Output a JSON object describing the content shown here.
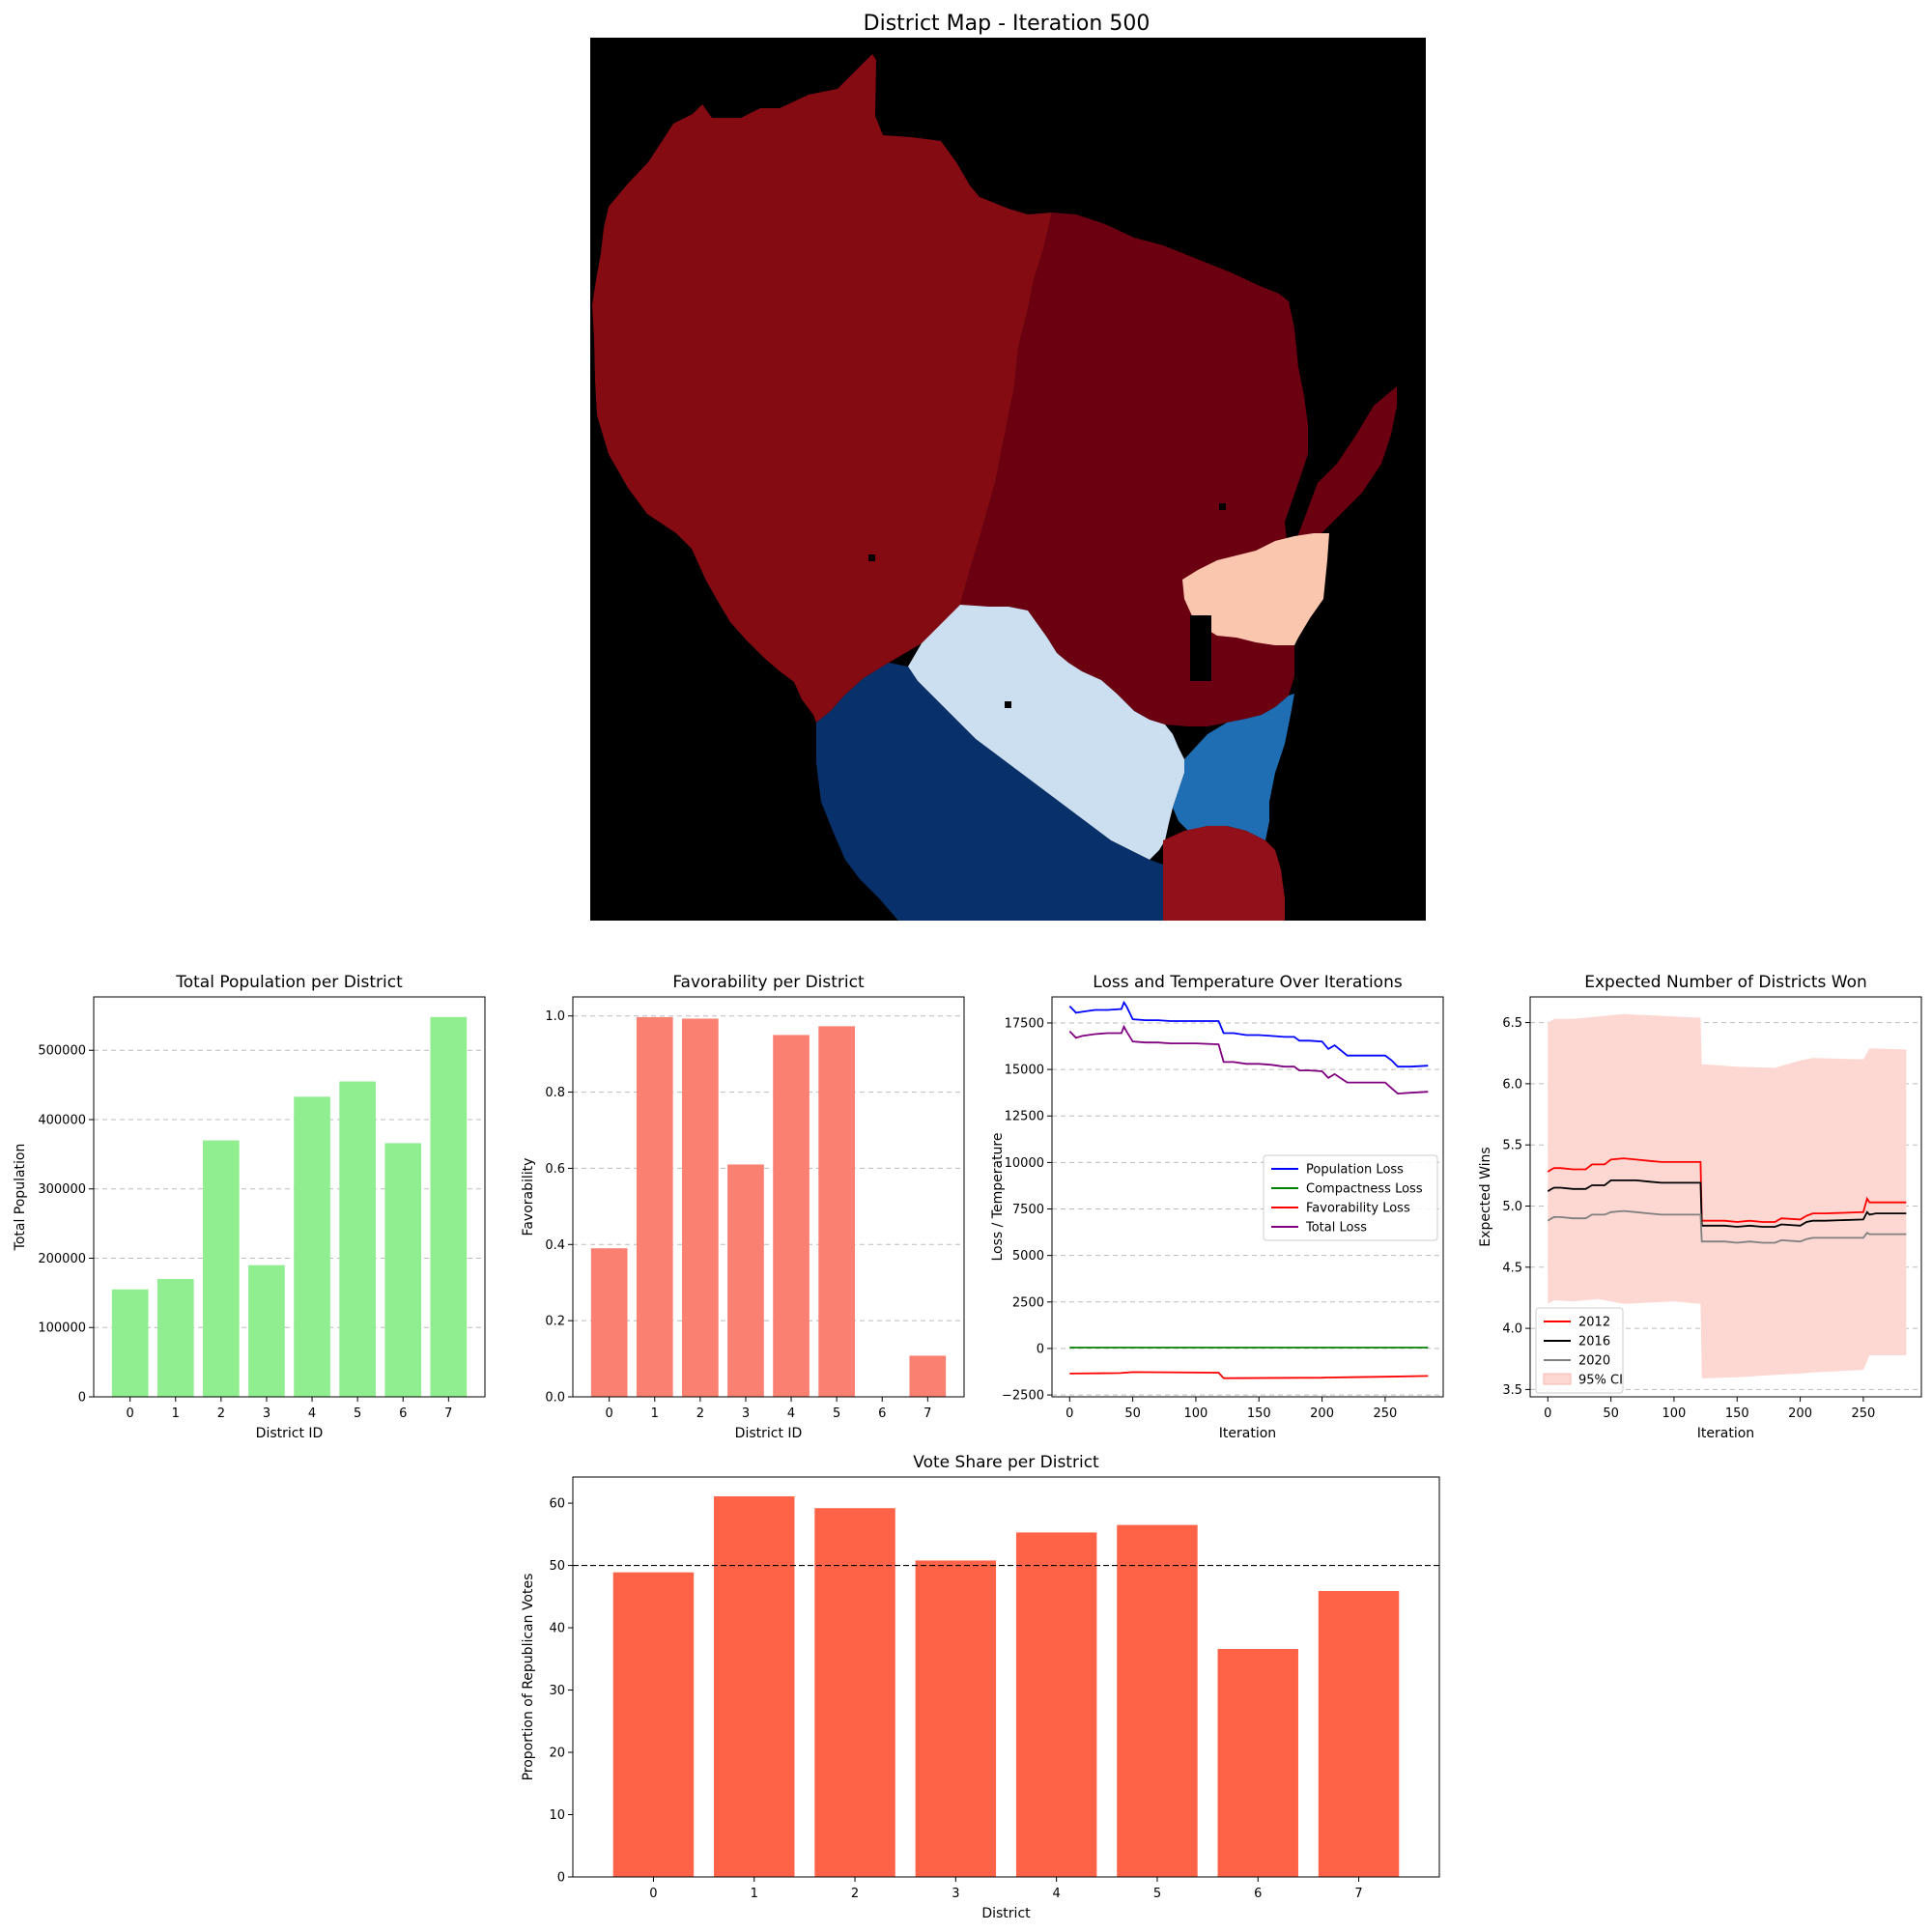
{
  "map": {
    "title": "District Map - Iteration 500",
    "colors": {
      "background": "#000000",
      "dark_red": "#840B12",
      "darker_red": "#6B0011",
      "red_se": "#91101A",
      "peach": "#FAC6AE",
      "light_blue": "#CCDFF1",
      "navy": "#08306B",
      "mid_blue": "#1F6EB3"
    }
  },
  "chart_data": [
    {
      "id": "population",
      "type": "bar",
      "title": "Total Population per District",
      "xlabel": "District ID",
      "ylabel": "Total Population",
      "categories": [
        "0",
        "1",
        "2",
        "3",
        "4",
        "5",
        "6",
        "7"
      ],
      "values": [
        155000,
        170000,
        370000,
        190000,
        433000,
        455000,
        366000,
        548000
      ],
      "ylim": [
        0,
        577000
      ],
      "yticks": [
        "0",
        "100000",
        "200000",
        "300000",
        "400000",
        "500000"
      ],
      "color": "#90EE90",
      "grid": "y"
    },
    {
      "id": "favorability",
      "type": "bar",
      "title": "Favorability per District",
      "xlabel": "District ID",
      "ylabel": "Favorability",
      "categories": [
        "0",
        "1",
        "2",
        "3",
        "4",
        "5",
        "6",
        "7"
      ],
      "values": [
        0.39,
        0.997,
        0.993,
        0.61,
        0.95,
        0.973,
        0.0,
        0.108
      ],
      "ylim": [
        0,
        1.05
      ],
      "yticks": [
        "0.0",
        "0.2",
        "0.4",
        "0.6",
        "0.8",
        "1.0"
      ],
      "color": "#FA8072",
      "grid": "y"
    },
    {
      "id": "loss",
      "type": "line",
      "title": "Loss and Temperature Over Iterations",
      "xlabel": "Iteration",
      "ylabel": "Loss / Temperature",
      "xlim": [
        -14,
        296
      ],
      "ylim": [
        -2600,
        18900
      ],
      "xticks": [
        "0",
        "50",
        "100",
        "150",
        "200",
        "250"
      ],
      "yticks": [
        "−2500",
        "0",
        "2500",
        "5000",
        "7500",
        "10000",
        "12500",
        "15000",
        "17500"
      ],
      "legend": "center-right",
      "grid": "y",
      "series": [
        {
          "name": "Population Loss",
          "color": "#0000FF",
          "x": [
            0,
            3,
            5,
            10,
            20,
            30,
            41,
            43,
            45,
            50,
            60,
            70,
            80,
            90,
            100,
            118,
            122,
            130,
            140,
            150,
            160,
            170,
            178,
            182,
            190,
            200,
            205,
            210,
            220,
            240,
            250,
            255,
            260,
            270,
            284
          ],
          "y": [
            18400,
            18200,
            18050,
            18100,
            18200,
            18200,
            18250,
            18600,
            18400,
            17700,
            17650,
            17650,
            17600,
            17600,
            17600,
            17600,
            16950,
            16950,
            16850,
            16850,
            16800,
            16750,
            16750,
            16550,
            16550,
            16500,
            16100,
            16300,
            15750,
            15750,
            15750,
            15500,
            15150,
            15150,
            15200
          ]
        },
        {
          "name": "Compactness Loss",
          "color": "#008000",
          "x": [
            0,
            284
          ],
          "y": [
            50,
            50
          ]
        },
        {
          "name": "Favorability Loss",
          "color": "#FF0000",
          "x": [
            0,
            40,
            50,
            118,
            122,
            200,
            205,
            250,
            284
          ],
          "y": [
            -1350,
            -1320,
            -1270,
            -1300,
            -1600,
            -1570,
            -1560,
            -1520,
            -1480
          ]
        },
        {
          "name": "Total Loss",
          "color": "#800080",
          "x": [
            0,
            3,
            5,
            10,
            20,
            30,
            41,
            43,
            45,
            50,
            60,
            70,
            80,
            90,
            100,
            118,
            122,
            130,
            140,
            150,
            160,
            170,
            178,
            182,
            190,
            200,
            205,
            210,
            220,
            240,
            250,
            255,
            260,
            270,
            284
          ],
          "y": [
            17050,
            16850,
            16700,
            16800,
            16900,
            16950,
            16950,
            17300,
            17050,
            16500,
            16450,
            16450,
            16400,
            16400,
            16400,
            16350,
            15400,
            15400,
            15300,
            15300,
            15250,
            15150,
            15150,
            14950,
            14950,
            14900,
            14550,
            14750,
            14300,
            14300,
            14300,
            14000,
            13700,
            13750,
            13800
          ]
        }
      ]
    },
    {
      "id": "wins",
      "type": "line",
      "title": "Expected Number of Districts Won",
      "xlabel": "Iteration",
      "ylabel": "Expected Wins",
      "xlim": [
        -14,
        296
      ],
      "ylim": [
        3.44,
        6.71
      ],
      "xticks": [
        "0",
        "50",
        "100",
        "150",
        "200",
        "250"
      ],
      "yticks": [
        "3.5",
        "4.0",
        "4.5",
        "5.0",
        "5.5",
        "6.0",
        "6.5"
      ],
      "legend": "lower-left",
      "grid": "y",
      "band": {
        "name": "95% CI",
        "color": "#FDD8D2",
        "x": [
          0,
          5,
          20,
          40,
          60,
          100,
          121,
          122,
          150,
          180,
          200,
          210,
          250,
          255,
          284
        ],
        "upper": [
          6.5,
          6.53,
          6.53,
          6.55,
          6.57,
          6.55,
          6.54,
          6.16,
          6.14,
          6.13,
          6.19,
          6.21,
          6.2,
          6.29,
          6.28
        ],
        "lower": [
          4.2,
          4.23,
          4.22,
          4.24,
          4.2,
          4.22,
          4.2,
          3.59,
          3.6,
          3.62,
          3.63,
          3.64,
          3.66,
          3.78,
          3.78
        ]
      },
      "series": [
        {
          "name": "2012",
          "color": "#FF0000",
          "x": [
            0,
            3,
            5,
            10,
            20,
            30,
            35,
            45,
            50,
            60,
            70,
            80,
            90,
            100,
            121,
            122,
            130,
            140,
            150,
            160,
            170,
            180,
            185,
            200,
            205,
            210,
            220,
            250,
            253,
            255,
            260,
            284
          ],
          "y": [
            5.28,
            5.3,
            5.31,
            5.31,
            5.3,
            5.3,
            5.34,
            5.34,
            5.38,
            5.39,
            5.38,
            5.37,
            5.36,
            5.36,
            5.36,
            4.88,
            4.88,
            4.88,
            4.87,
            4.88,
            4.87,
            4.87,
            4.9,
            4.89,
            4.92,
            4.94,
            4.94,
            4.95,
            5.06,
            5.03,
            5.03,
            5.03
          ]
        },
        {
          "name": "2016",
          "color": "#000000",
          "x": [
            0,
            3,
            5,
            10,
            20,
            30,
            35,
            45,
            50,
            60,
            70,
            80,
            90,
            100,
            121,
            122,
            130,
            140,
            150,
            160,
            170,
            180,
            185,
            200,
            205,
            210,
            220,
            250,
            253,
            255,
            260,
            284
          ],
          "y": [
            5.12,
            5.14,
            5.15,
            5.15,
            5.14,
            5.14,
            5.17,
            5.17,
            5.21,
            5.21,
            5.21,
            5.2,
            5.19,
            5.19,
            5.19,
            4.84,
            4.84,
            4.84,
            4.83,
            4.84,
            4.83,
            4.83,
            4.85,
            4.84,
            4.87,
            4.88,
            4.88,
            4.89,
            4.95,
            4.93,
            4.94,
            4.94
          ]
        },
        {
          "name": "2020",
          "color": "#808080",
          "x": [
            0,
            3,
            5,
            10,
            20,
            30,
            35,
            45,
            50,
            60,
            70,
            80,
            90,
            100,
            121,
            122,
            130,
            140,
            150,
            160,
            170,
            180,
            185,
            200,
            205,
            210,
            220,
            250,
            253,
            255,
            260,
            284
          ],
          "y": [
            4.88,
            4.9,
            4.91,
            4.91,
            4.9,
            4.9,
            4.93,
            4.93,
            4.95,
            4.96,
            4.95,
            4.94,
            4.93,
            4.93,
            4.93,
            4.71,
            4.71,
            4.71,
            4.7,
            4.71,
            4.7,
            4.7,
            4.72,
            4.71,
            4.73,
            4.74,
            4.74,
            4.74,
            4.78,
            4.77,
            4.77,
            4.77
          ]
        }
      ]
    },
    {
      "id": "voteshare",
      "type": "bar",
      "title": "Vote Share per District",
      "xlabel": "District",
      "ylabel": "Proportion of Republican Votes",
      "categories": [
        "0",
        "1",
        "2",
        "3",
        "4",
        "5",
        "6",
        "7"
      ],
      "values": [
        48.9,
        61.1,
        59.2,
        50.8,
        55.3,
        56.5,
        36.6,
        45.9
      ],
      "ylim": [
        0,
        64.2
      ],
      "yticks": [
        "0",
        "10",
        "20",
        "30",
        "40",
        "50",
        "60"
      ],
      "reference_line": 50,
      "color": "#FF6347",
      "grid": "none"
    }
  ]
}
